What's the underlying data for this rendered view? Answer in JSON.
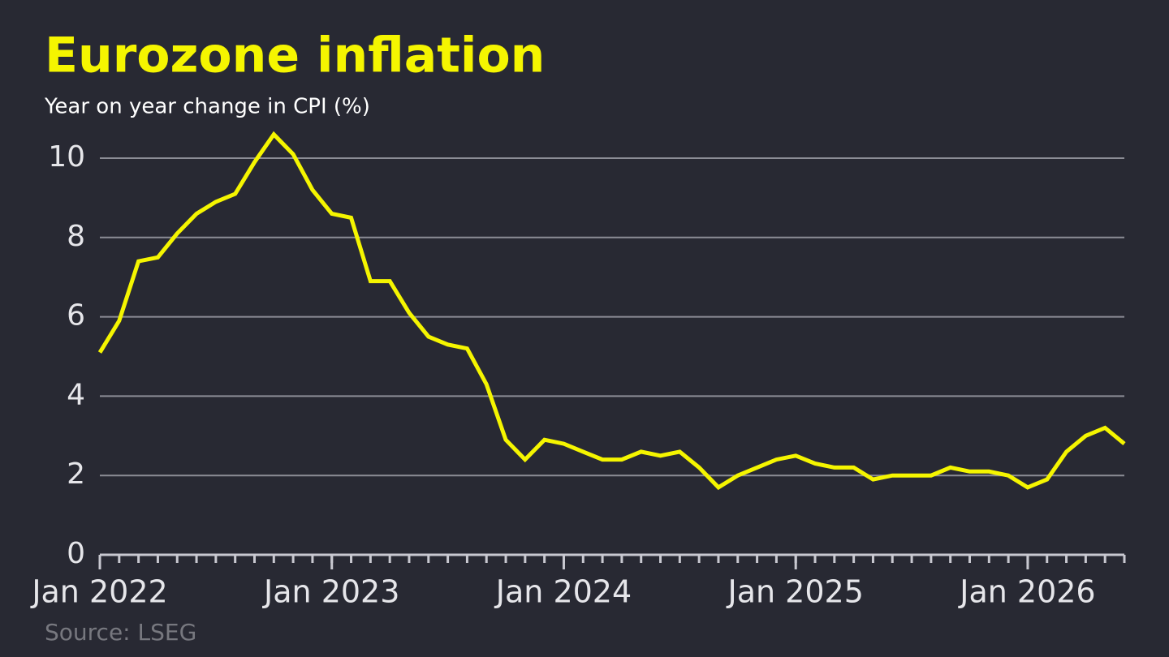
{
  "chart_data": {
    "type": "line",
    "title": "Eurozone inflation",
    "subtitle": "Year on year change in CPI (%)",
    "source": "Source: LSEG",
    "x": [
      "2022-01",
      "2022-02",
      "2022-03",
      "2022-04",
      "2022-05",
      "2022-06",
      "2022-07",
      "2022-08",
      "2022-09",
      "2022-10",
      "2022-11",
      "2022-12",
      "2023-01",
      "2023-02",
      "2023-03",
      "2023-04",
      "2023-05",
      "2023-06",
      "2023-07",
      "2023-08",
      "2023-09",
      "2023-10",
      "2023-11",
      "2023-12",
      "2024-01",
      "2024-02",
      "2024-03",
      "2024-04",
      "2024-05",
      "2024-06",
      "2024-07",
      "2024-08",
      "2024-09",
      "2024-10",
      "2024-11",
      "2024-12",
      "2025-01",
      "2025-02",
      "2025-03",
      "2025-04",
      "2025-05",
      "2025-06",
      "2025-07",
      "2025-08",
      "2025-09",
      "2025-10",
      "2025-11",
      "2025-12",
      "2026-01",
      "2026-02",
      "2026-03",
      "2026-04",
      "2026-05",
      "2026-06"
    ],
    "series": [
      {
        "name": "Eurozone inflation",
        "color": "#f5f500",
        "values": [
          5.1,
          5.9,
          7.4,
          7.5,
          8.1,
          8.6,
          8.9,
          9.1,
          9.9,
          10.6,
          10.1,
          9.2,
          8.6,
          8.5,
          6.9,
          6.9,
          6.1,
          5.5,
          5.3,
          5.2,
          4.3,
          2.9,
          2.4,
          2.9,
          2.8,
          2.6,
          2.4,
          2.4,
          2.6,
          2.5,
          2.6,
          2.2,
          1.7,
          2.0,
          2.2,
          2.4,
          2.5,
          2.3,
          2.2,
          2.2,
          1.9,
          2.0,
          2.0,
          2.0,
          2.2,
          2.1,
          2.1,
          2.0,
          1.7,
          1.9,
          2.6,
          3.0,
          3.2,
          2.8
        ]
      }
    ],
    "xlim": [
      "2022-01",
      "2026-06"
    ],
    "xticks": [
      {
        "value": "2022-01",
        "label": "Jan 2022"
      },
      {
        "value": "2023-01",
        "label": "Jan 2023"
      },
      {
        "value": "2024-01",
        "label": "Jan 2024"
      },
      {
        "value": "2025-01",
        "label": "Jan 2025"
      },
      {
        "value": "2026-01",
        "label": "Jan 2026"
      }
    ],
    "ylim": [
      0,
      10
    ],
    "yticks": [
      0,
      2,
      4,
      6,
      8,
      10
    ],
    "grid": true
  }
}
